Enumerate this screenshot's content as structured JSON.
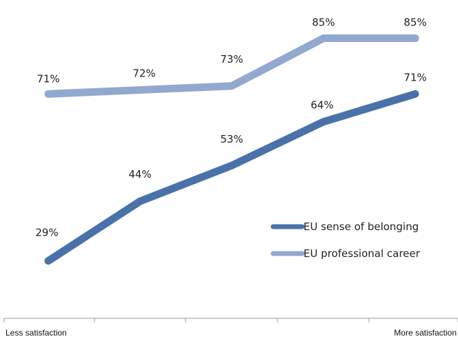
{
  "chart_data": {
    "type": "line",
    "title": "",
    "x": [
      1,
      2,
      3,
      4,
      5
    ],
    "x_axis": {
      "left_label": "Less satisfaction",
      "right_label": "More satisfaction"
    },
    "ylim": [
      0,
      100
    ],
    "grid": false,
    "legend_position": "right",
    "series": [
      {
        "name": "EU sense of belonging",
        "color": "#4a72a8",
        "values": [
          29,
          44,
          53,
          64,
          71
        ],
        "labels": [
          "29%",
          "44%",
          "53%",
          "64%",
          "71%"
        ]
      },
      {
        "name": "EU professional career",
        "color": "#93a8cf",
        "values": [
          71,
          72,
          73,
          85,
          85
        ],
        "labels": [
          "71%",
          "72%",
          "73%",
          "85%",
          "85%"
        ]
      }
    ]
  }
}
